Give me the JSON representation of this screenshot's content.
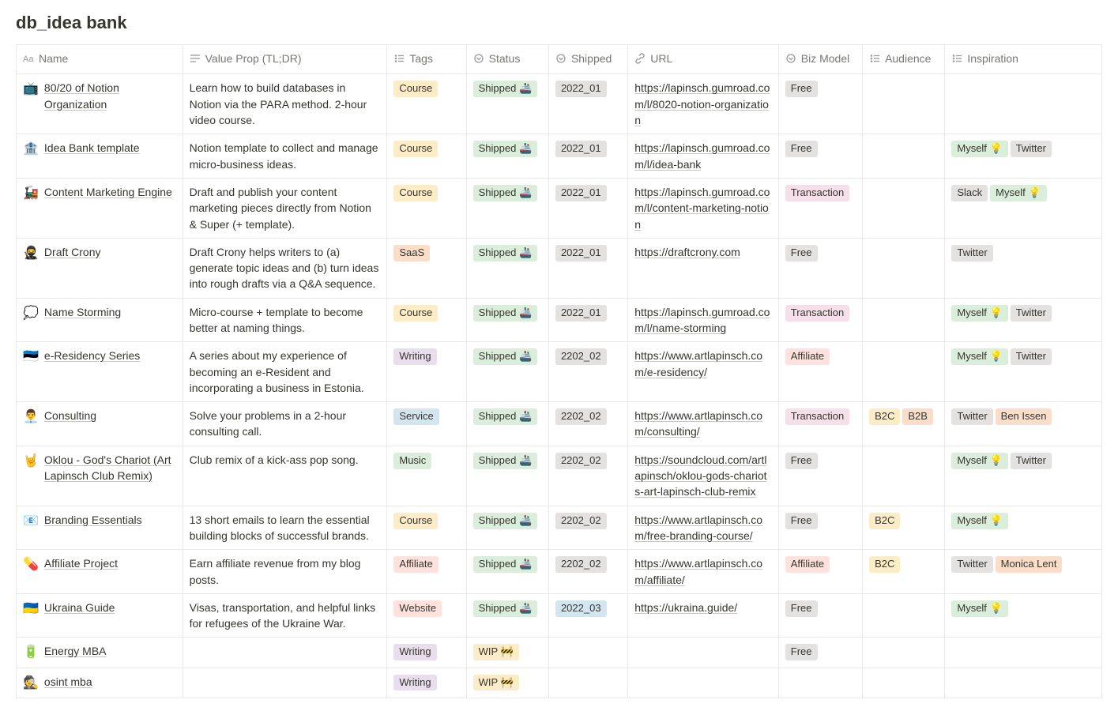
{
  "title": "db_idea bank",
  "tagColors": {
    "Course": "#fdecc8",
    "SaaS": "#fadec9",
    "Writing": "#e8deee",
    "Service": "#d3e5ef",
    "Music": "#dbeddb",
    "Affiliate": "#ffe2dd",
    "Website": "#ffe2dd",
    "Shipped 🚢": "#dbeddb",
    "WIP 🚧": "#fdecc8",
    "2022_01": "#e3e2e0",
    "2202_02": "#e3e2e0",
    "2022_03": "#d3e5ef",
    "Free": "#e3e2e0",
    "Transaction": "#f5e0e9",
    "Affiliate_biz": "#ffe2dd",
    "B2C": "#fdecc8",
    "B2B": "#fadec9",
    "Myself 💡": "#dbeddb",
    "Twitter": "#e3e2e0",
    "Slack": "#e3e2e0",
    "Ben Issen": "#fadec9",
    "Monica Lent": "#fadec9"
  },
  "columns": [
    {
      "label": "Name",
      "icon": "text",
      "class": "col-name"
    },
    {
      "label": "Value Prop (TL;DR)",
      "icon": "lines",
      "class": "col-value"
    },
    {
      "label": "Tags",
      "icon": "multi",
      "class": "col-tags"
    },
    {
      "label": "Status",
      "icon": "select",
      "class": "col-status"
    },
    {
      "label": "Shipped",
      "icon": "select",
      "class": "col-shipped"
    },
    {
      "label": "URL",
      "icon": "link",
      "class": "col-url"
    },
    {
      "label": "Biz Model",
      "icon": "select",
      "class": "col-biz"
    },
    {
      "label": "Audience",
      "icon": "multi",
      "class": "col-aud"
    },
    {
      "label": "Inspiration",
      "icon": "multi",
      "class": "col-insp"
    }
  ],
  "rows": [
    {
      "emoji": "📺",
      "name": "80/20 of Notion Organization",
      "value": "Learn how to build databases in Notion via the PARA method. 2-hour video course.",
      "tags": [
        "Course"
      ],
      "status": "Shipped 🚢",
      "shipped": "2022_01",
      "url": "https://lapinsch.gumroad.com/l/8020-notion-organization",
      "biz": "Free",
      "audience": [],
      "inspiration": []
    },
    {
      "emoji": "🏦",
      "name": "Idea Bank template",
      "value": "Notion template to collect and manage micro-business ideas.",
      "tags": [
        "Course"
      ],
      "status": "Shipped 🚢",
      "shipped": "2022_01",
      "url": "https://lapinsch.gumroad.com/l/idea-bank",
      "biz": "Free",
      "audience": [],
      "inspiration": [
        "Myself 💡",
        "Twitter"
      ]
    },
    {
      "emoji": "🚂",
      "name": "Content Marketing Engine",
      "value": "Draft and publish your content marketing pieces directly from Notion & Super (+ template).",
      "tags": [
        "Course"
      ],
      "status": "Shipped 🚢",
      "shipped": "2022_01",
      "url": "https://lapinsch.gumroad.com/l/content-marketing-notion",
      "biz": "Transaction",
      "audience": [],
      "inspiration": [
        "Slack",
        "Myself 💡"
      ]
    },
    {
      "emoji": "🥷",
      "name": "Draft Crony",
      "value": "Draft Crony helps writers to (a) generate topic ideas and (b) turn ideas into rough drafts via a Q&A sequence.",
      "tags": [
        "SaaS"
      ],
      "status": "Shipped 🚢",
      "shipped": "2022_01",
      "url": "https://draftcrony.com",
      "biz": "Free",
      "audience": [],
      "inspiration": [
        "Twitter"
      ]
    },
    {
      "emoji": "💭",
      "name": "Name Storming",
      "value": "Micro-course + template to become better at naming things.",
      "tags": [
        "Course"
      ],
      "status": "Shipped 🚢",
      "shipped": "2022_01",
      "url": "https://lapinsch.gumroad.com/l/name-storming",
      "biz": "Transaction",
      "audience": [],
      "inspiration": [
        "Myself 💡",
        "Twitter"
      ]
    },
    {
      "emoji": "🇪🇪",
      "name": "e-Residency Series",
      "value": "A series about my experience of becoming an e-Resident and incorporating a business in Estonia.",
      "tags": [
        "Writing"
      ],
      "status": "Shipped 🚢",
      "shipped": "2202_02",
      "url": "https://www.artlapinsch.com/e-residency/",
      "biz": "Affiliate",
      "audience": [],
      "inspiration": [
        "Myself 💡",
        "Twitter"
      ]
    },
    {
      "emoji": "👨‍💼",
      "name": "Consulting",
      "value": "Solve your problems in a 2-hour consulting call.",
      "tags": [
        "Service"
      ],
      "status": "Shipped 🚢",
      "shipped": "2202_02",
      "url": "https://www.artlapinsch.com/consulting/",
      "biz": "Transaction",
      "audience": [
        "B2C",
        "B2B"
      ],
      "inspiration": [
        "Twitter",
        "Ben Issen"
      ]
    },
    {
      "emoji": "🤘",
      "name": "Oklou - God's Chariot (Art Lapinsch Club Remix)",
      "value": "Club remix of a kick-ass pop song.",
      "tags": [
        "Music"
      ],
      "status": "Shipped 🚢",
      "shipped": "2202_02",
      "url": "https://soundcloud.com/artlapinsch/oklou-gods-chariots-art-lapinsch-club-remix",
      "biz": "Free",
      "audience": [],
      "inspiration": [
        "Myself 💡",
        "Twitter"
      ]
    },
    {
      "emoji": "📧",
      "name": "Branding Essentials",
      "value": "13 short emails to learn the essential building blocks of successful brands.",
      "tags": [
        "Course"
      ],
      "status": "Shipped 🚢",
      "shipped": "2202_02",
      "url": "https://www.artlapinsch.com/free-branding-course/",
      "biz": "Free",
      "audience": [
        "B2C"
      ],
      "inspiration": [
        "Myself 💡"
      ]
    },
    {
      "emoji": "💊",
      "name": "Affiliate Project",
      "value": "Earn affiliate revenue from my blog posts.",
      "tags": [
        "Affiliate"
      ],
      "status": "Shipped 🚢",
      "shipped": "2202_02",
      "url": "https://www.artlapinsch.com/affiliate/",
      "biz": "Affiliate",
      "audience": [
        "B2C"
      ],
      "inspiration": [
        "Twitter",
        "Monica Lent"
      ]
    },
    {
      "emoji": "🇺🇦",
      "name": "Ukraina Guide",
      "value": "Visas, transportation, and helpful links for refugees of the Ukraine War.",
      "tags": [
        "Website"
      ],
      "status": "Shipped 🚢",
      "shipped": "2022_03",
      "url": "https://ukraina.guide/",
      "biz": "Free",
      "audience": [],
      "inspiration": [
        "Myself 💡"
      ]
    },
    {
      "emoji": "🔋",
      "name": "Energy MBA",
      "value": "",
      "tags": [
        "Writing"
      ],
      "status": "WIP 🚧",
      "shipped": "",
      "url": "",
      "biz": "Free",
      "audience": [],
      "inspiration": []
    },
    {
      "emoji": "🕵️",
      "name": "osint mba",
      "value": "",
      "tags": [
        "Writing"
      ],
      "status": "WIP 🚧",
      "shipped": "",
      "url": "",
      "biz": "",
      "audience": [],
      "inspiration": []
    }
  ]
}
